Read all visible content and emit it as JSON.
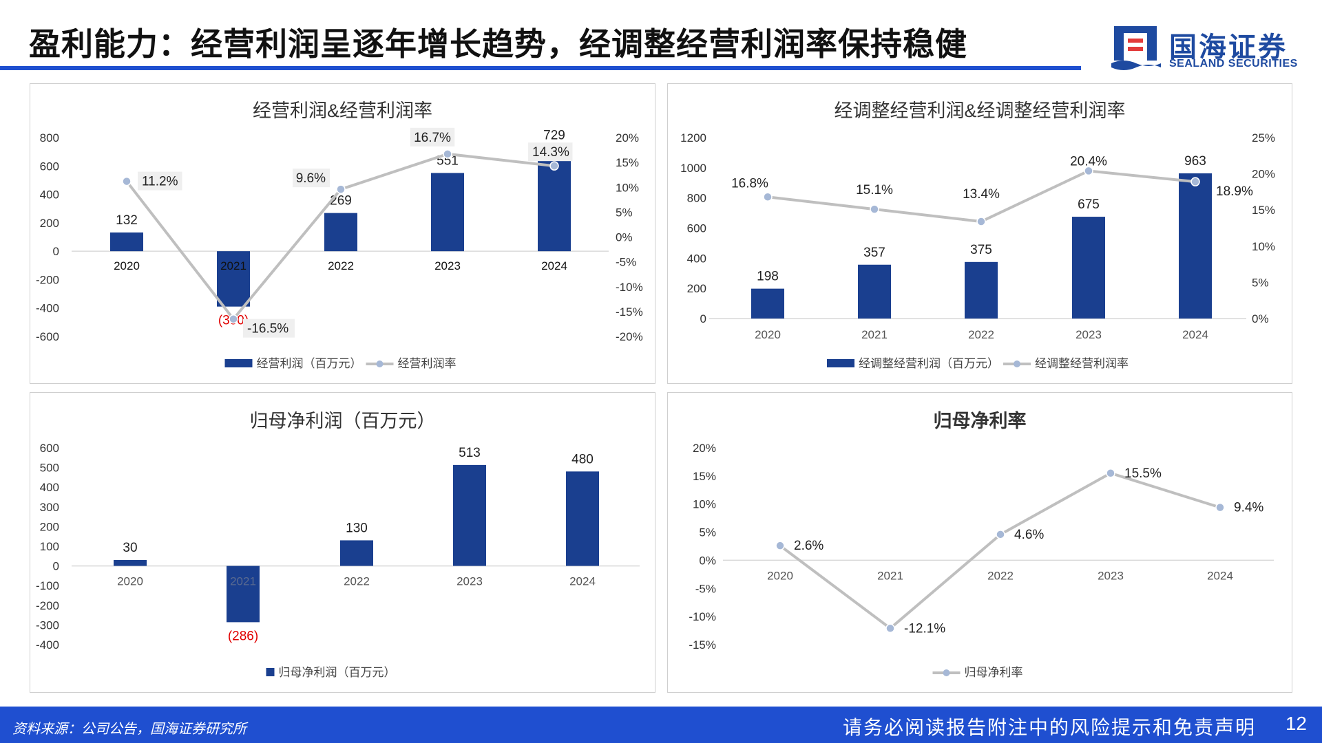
{
  "header": {
    "title": "盈利能力：经营利润呈逐年增长趋势，经调整经营利润率保持稳健"
  },
  "logo": {
    "name_cn": "国海证券",
    "name_en": "SEALAND SECURITIES"
  },
  "footer": {
    "source": "资料来源：公司公告，国海证券研究所",
    "disclaimer": "请务必阅读报告附注中的风险提示和免责声明",
    "page": "12"
  },
  "colors": {
    "bar": "#1a3f8f",
    "line": "#bfbfbf",
    "marker": "#a6b8d6",
    "negative_label": "#e00000",
    "brand": "#1f4fd0"
  },
  "chart_data": [
    {
      "id": "operating-profit",
      "type": "bar+line",
      "title": "经营利润&经营利润率",
      "categories": [
        "2020",
        "2021",
        "2022",
        "2023",
        "2024"
      ],
      "bar_series": {
        "name": "经营利润（百万元）",
        "values": [
          132,
          -390,
          269,
          551,
          729
        ],
        "labels": [
          "132",
          "(390)",
          "269",
          "551",
          "729"
        ]
      },
      "line_series": {
        "name": "经营利润率",
        "values": [
          11.2,
          -16.5,
          9.6,
          16.7,
          14.3
        ],
        "labels": [
          "11.2%",
          "-16.5%",
          "9.6%",
          "16.7%",
          "14.3%"
        ]
      },
      "y_left": {
        "min": -600,
        "max": 800,
        "ticks": [
          800,
          600,
          400,
          200,
          0,
          -200,
          -400,
          -600
        ]
      },
      "y_right": {
        "min": -20,
        "max": 20,
        "ticks": [
          "20%",
          "15%",
          "10%",
          "5%",
          "0%",
          "-5%",
          "-10%",
          "-15%",
          "-20%"
        ]
      },
      "legend_position": "bottom"
    },
    {
      "id": "adjusted-operating-profit",
      "type": "bar+line",
      "title": "经调整经营利润&经调整经营利润率",
      "categories": [
        "2020",
        "2021",
        "2022",
        "2023",
        "2024"
      ],
      "bar_series": {
        "name": "经调整经营利润（百万元）",
        "values": [
          198,
          357,
          375,
          675,
          963
        ],
        "labels": [
          "198",
          "357",
          "375",
          "675",
          "963"
        ]
      },
      "line_series": {
        "name": "经调整经营利润率",
        "values": [
          16.8,
          15.1,
          13.4,
          20.4,
          18.9
        ],
        "labels": [
          "16.8%",
          "15.1%",
          "13.4%",
          "20.4%",
          "18.9%"
        ]
      },
      "y_left": {
        "min": 0,
        "max": 1200,
        "ticks": [
          1200,
          1000,
          800,
          600,
          400,
          200,
          0
        ]
      },
      "y_right": {
        "min": 0,
        "max": 25,
        "ticks": [
          "25%",
          "20%",
          "15%",
          "10%",
          "5%",
          "0%"
        ]
      },
      "legend_position": "bottom"
    },
    {
      "id": "net-profit",
      "type": "bar",
      "title": "归母净利润（百万元）",
      "categories": [
        "2020",
        "2021",
        "2022",
        "2023",
        "2024"
      ],
      "bar_series": {
        "name": "归母净利润（百万元）",
        "values": [
          30,
          -286,
          130,
          513,
          480
        ],
        "labels": [
          "30",
          "(286)",
          "130",
          "513",
          "480"
        ]
      },
      "y_left": {
        "min": -400,
        "max": 600,
        "ticks": [
          600,
          500,
          400,
          300,
          200,
          100,
          0,
          -100,
          -200,
          -300,
          -400
        ]
      },
      "legend_position": "bottom"
    },
    {
      "id": "net-margin",
      "type": "line",
      "title": "归母净利率",
      "categories": [
        "2020",
        "2021",
        "2022",
        "2023",
        "2024"
      ],
      "line_series": {
        "name": "归母净利率",
        "values": [
          2.6,
          -12.1,
          4.6,
          15.5,
          9.4
        ],
        "labels": [
          "2.6%",
          "-12.1%",
          "4.6%",
          "15.5%",
          "9.4%"
        ]
      },
      "y_left": {
        "min": -15,
        "max": 20,
        "ticks": [
          "20%",
          "15%",
          "10%",
          "5%",
          "0%",
          "-5%",
          "-10%",
          "-15%"
        ]
      },
      "legend_position": "bottom"
    }
  ]
}
